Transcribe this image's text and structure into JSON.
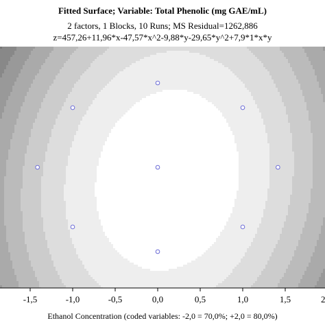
{
  "chart_data": {
    "type": "contour",
    "title": "Fitted Surface; Variable: Total Phenolic (mg GAE/mL)",
    "subtitle": "2 factors, 1 Blocks, 10 Runs; MS Residual=1262,886",
    "equation": "z=457,26+11,96*x-47,57*x^2-9,88*y-29,65*y^2+7,9*1*x*y",
    "xlabel": "Ethanol Concentration (coded variables: -2,0 = 70,0%; +2,0 = 80,0%)",
    "xlim": [
      -2,
      2
    ],
    "ylim": [
      -1.5,
      1.5
    ],
    "x_ticks": [
      "-1,5",
      "-1,0",
      "-0,5",
      "0,0",
      "0,5",
      "1,0",
      "1,5"
    ],
    "x_tick_values": [
      -1.5,
      -1.0,
      -0.5,
      0.0,
      0.5,
      1.0,
      1.5
    ],
    "x_tick_edge_label": "2",
    "surface": {
      "b0": 457.26,
      "b1": 11.96,
      "b11": -47.57,
      "b2": -9.88,
      "b22": -29.65,
      "b12": 7.9
    },
    "design_points": [
      {
        "x": 0.0,
        "y": 1.0
      },
      {
        "x": -1.0,
        "y": 0.707
      },
      {
        "x": 1.0,
        "y": 0.707
      },
      {
        "x": -1.414,
        "y": 0.0
      },
      {
        "x": 0.0,
        "y": 0.0
      },
      {
        "x": 1.414,
        "y": 0.0
      },
      {
        "x": -1.0,
        "y": -0.707
      },
      {
        "x": 1.0,
        "y": -0.707
      },
      {
        "x": 0.0,
        "y": -1.0
      }
    ],
    "colors": {
      "marker": "#6b6bd6",
      "axis": "#000000"
    }
  }
}
